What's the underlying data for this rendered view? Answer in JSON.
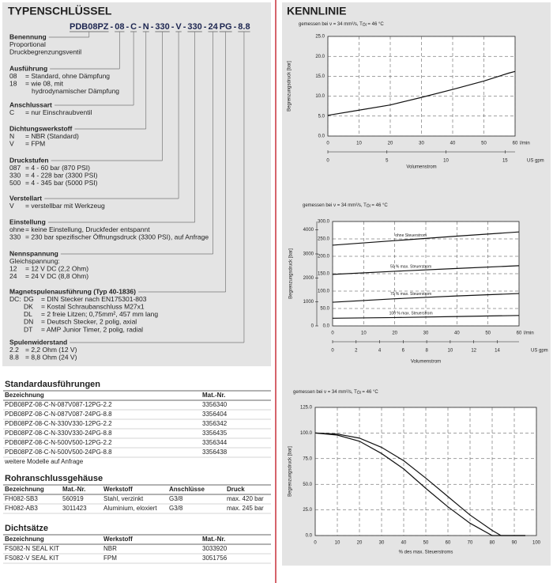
{
  "type_key": {
    "title": "TYPENSCHLÜSSEL",
    "code": [
      "PDB08PZ",
      "-",
      "08",
      "-",
      "C",
      "-",
      "N",
      "-",
      "330",
      "-",
      "V",
      "-",
      "330",
      "-",
      "24",
      "PG",
      "-",
      "8.8"
    ],
    "sections": [
      {
        "heading": "Benennung",
        "rows": [
          [
            "Proportional"
          ],
          [
            "Druckbegrenzungsventil"
          ]
        ]
      },
      {
        "heading": "Ausführung",
        "rows": [
          [
            "08",
            "= Standard, ohne Dämpfung"
          ],
          [
            "18",
            "= wie 08, mit"
          ],
          [
            "hydrodynamischer Dämpfung"
          ]
        ]
      },
      {
        "heading": "Anschlussart",
        "rows": [
          [
            "C",
            "= nur Einschraubventil"
          ]
        ]
      },
      {
        "heading": "Dichtungswerkstoff",
        "rows": [
          [
            "N",
            "= NBR (Standard)"
          ],
          [
            "V",
            "= FPM"
          ]
        ]
      },
      {
        "heading": "Druckstufen",
        "rows": [
          [
            "087",
            "= 4 -   60 bar (870 PSI)"
          ],
          [
            "330",
            "= 4 - 228 bar (3300 PSI)"
          ],
          [
            "500",
            "= 4 - 345 bar (5000 PSI)"
          ]
        ]
      },
      {
        "heading": "Verstellart",
        "rows": [
          [
            "V",
            "= verstellbar mit Werkzeug"
          ]
        ]
      },
      {
        "heading": "Einstellung",
        "rows": [
          [
            "ohne",
            "= keine Einstellung, Druckfeder entspannt"
          ],
          [
            "330",
            "= 230 bar spezifischer Öffnungsdruck (3300 PSI), auf Anfrage"
          ]
        ]
      },
      {
        "heading": "Nennspannung",
        "rows": [
          [
            "Gleichspannung:"
          ],
          [
            "12",
            "=   12 V DC (2,2 Ohm)"
          ],
          [
            "24",
            "=   24 V DC (8,8 Ohm)"
          ]
        ]
      },
      {
        "heading": "Magnetspulenausführung (Typ 40-1836)",
        "rows": [
          [
            "DC:",
            "DG",
            "= DIN Stecker nach EN175301-803"
          ],
          [
            "DK",
            "= Kostal Schraubanschluss M27x1"
          ],
          [
            "DL",
            "= 2 freie Litzen; 0,75mm², 457 mm lang"
          ],
          [
            "DN",
            "= Deutsch Stecker, 2 polig, axial"
          ],
          [
            "DT",
            "= AMP Junior Timer, 2 polig, radial"
          ]
        ]
      },
      {
        "heading": "Spulenwiderstand",
        "rows": [
          [
            "2.2",
            "= 2,2 Ohm (12 V)"
          ],
          [
            "8.8",
            "= 8,8 Ohm (24 V)"
          ]
        ]
      }
    ]
  },
  "standard": {
    "title": "Standardausführungen",
    "header": [
      "Bezeichnung",
      "Mat.-Nr."
    ],
    "rows": [
      [
        "PDB08PZ-08-C-N-087V087-12PG-2.2",
        3356340
      ],
      [
        "PDB08PZ-08-C-N-087V087-24PG-8.8",
        3356404
      ],
      [
        "PDB08PZ-08-C-N-330V330-12PG-2.2",
        3356342
      ],
      [
        "PDB08PZ-08-C-N-330V330-24PG-8.8",
        3356435
      ],
      [
        "PDB08PZ-08-C-N-500V500-12PG-2.2",
        3356344
      ],
      [
        "PDB08PZ-08-C-N-500V500-24PG-8.8",
        3356438
      ]
    ],
    "note": "weitere Modelle auf Anfrage"
  },
  "rohr": {
    "title": "Rohranschlussgehäuse",
    "header": [
      "Bezeichnung",
      "Mat.-Nr.",
      "Werkstoff",
      "Anschlüsse",
      "Druck"
    ],
    "rows": [
      [
        "FH082-SB3",
        560919,
        "Stahl, verzinkt",
        "G3/8",
        "max. 420 bar"
      ],
      [
        "FH082-AB3",
        3011423,
        "Aluminium, eloxiert",
        "G3/8",
        "max. 245 bar"
      ]
    ]
  },
  "dicht": {
    "title": "Dichtsätze",
    "header": [
      "Bezeichnung",
      "Werkstoff",
      "Mat.-Nr."
    ],
    "rows": [
      [
        "FS082-N  SEAL KIT",
        "NBR",
        3033920
      ],
      [
        "FS082-V  SEAL KIT",
        "FPM",
        3051756
      ]
    ]
  },
  "kennlinie": {
    "title": "KENNLINIE",
    "charts": [
      {
        "type": "line",
        "caption": [
          "gemessen bei ν = 34 mm²/s, T",
          "Öl",
          " = 46 °C"
        ],
        "ylabel": "Begrenzungsdruck [bar]",
        "xlabel": "Volumenstrom",
        "x_unit": "l/min",
        "x2_unit": "US gpm",
        "x": [
          0,
          10,
          20,
          30,
          40,
          50,
          58,
          60
        ],
        "xlim": [
          0,
          60
        ],
        "xticks": [
          0,
          10,
          20,
          30,
          40,
          50,
          60
        ],
        "x2lim": [
          0,
          15.85
        ],
        "x2ticks": [
          0,
          5,
          10,
          15
        ],
        "ylim": [
          0,
          25
        ],
        "yticks": [
          {
            "value": 0,
            "label": "0.0"
          },
          {
            "value": 5,
            "label": "5.0"
          },
          {
            "value": 10,
            "label": "10.0"
          },
          {
            "value": 15,
            "label": "15.0"
          },
          {
            "value": 20,
            "label": "20.0"
          },
          {
            "value": 25,
            "label": "25.0"
          }
        ],
        "grid": true,
        "series": [
          {
            "color": "#111111",
            "values": [
              5.2,
              6.5,
              7.8,
              9.7,
              11.7,
              13.8,
              15.8,
              16.2
            ]
          }
        ]
      },
      {
        "type": "line",
        "caption": [
          "gemessen bei ν = 34 mm²/s, T",
          "Öl",
          " = 46 °C"
        ],
        "ylabel": "Begrenzungsdruck [bar]",
        "xlabel": "Volumenstrom",
        "x_unit": "l/min",
        "x2_unit": "US gpm",
        "x": [
          0,
          20,
          40,
          60
        ],
        "xlim": [
          0,
          60
        ],
        "xticks": [
          0,
          10,
          20,
          30,
          40,
          50,
          60
        ],
        "x2lim": [
          0,
          15.85
        ],
        "x2ticks": [
          0,
          2,
          4,
          6,
          8,
          10,
          12,
          14
        ],
        "ylim": [
          0,
          300
        ],
        "yticks": [
          {
            "value": 0,
            "label": "0.0"
          },
          {
            "value": 50,
            "label": "50.0"
          },
          {
            "value": 100,
            "label": "100.0"
          },
          {
            "value": 150,
            "label": "150.0"
          },
          {
            "value": 200,
            "label": "200.0"
          },
          {
            "value": 250,
            "label": "250.0"
          },
          {
            "value": 300,
            "label": "300.0"
          }
        ],
        "y2lim": [
          0,
          4351
        ],
        "y2ticks": [
          0,
          1000,
          2000,
          3000,
          4000
        ],
        "grid": true,
        "series": [
          {
            "name": "ohne Steuerstrom",
            "color": "#111111",
            "values": [
              232,
              245,
              258,
              270
            ]
          },
          {
            "name": "50 % max. Steuerstrom",
            "color": "#111111",
            "values": [
              148,
              157,
              165,
              173
            ]
          },
          {
            "name": "70 % max. Steuerstrom",
            "color": "#111111",
            "values": [
              68,
              78,
              86,
              93
            ]
          },
          {
            "name": "100 % max. Steuerstrom",
            "color": "#111111",
            "values": [
              22,
              24,
              27,
              30
            ]
          }
        ]
      },
      {
        "type": "line",
        "caption": [
          "gemessen bei ν = 34 mm²/s, T",
          "Öl",
          " = 46 °C"
        ],
        "ylabel": "Begrenzungsdruck [bar]",
        "xlabel": "% des max. Steuerstroms",
        "x": [
          0,
          10,
          20,
          30,
          40,
          50,
          60,
          70,
          80,
          84,
          90,
          95
        ],
        "xlim": [
          0,
          100
        ],
        "xticks": [
          0,
          10,
          20,
          30,
          40,
          50,
          60,
          70,
          80,
          90,
          100
        ],
        "ylim": [
          0,
          125
        ],
        "yticks": [
          {
            "value": 0,
            "label": "0.0"
          },
          {
            "value": 25,
            "label": "25.0"
          },
          {
            "value": 50,
            "label": "50.0"
          },
          {
            "value": 75,
            "label": "75.0"
          },
          {
            "value": 100,
            "label": "100.0"
          },
          {
            "value": 125,
            "label": "125.0"
          }
        ],
        "grid": true,
        "series": [
          {
            "color": "#111111",
            "values": [
              100,
              98,
              92,
              80,
              65,
              46,
              28,
              12,
              0,
              0,
              0,
              0
            ]
          },
          {
            "color": "#111111",
            "values": [
              100,
              99,
              95,
              86,
              73,
              56,
              38,
              20,
              5,
              0,
              0,
              0
            ]
          }
        ]
      }
    ]
  }
}
